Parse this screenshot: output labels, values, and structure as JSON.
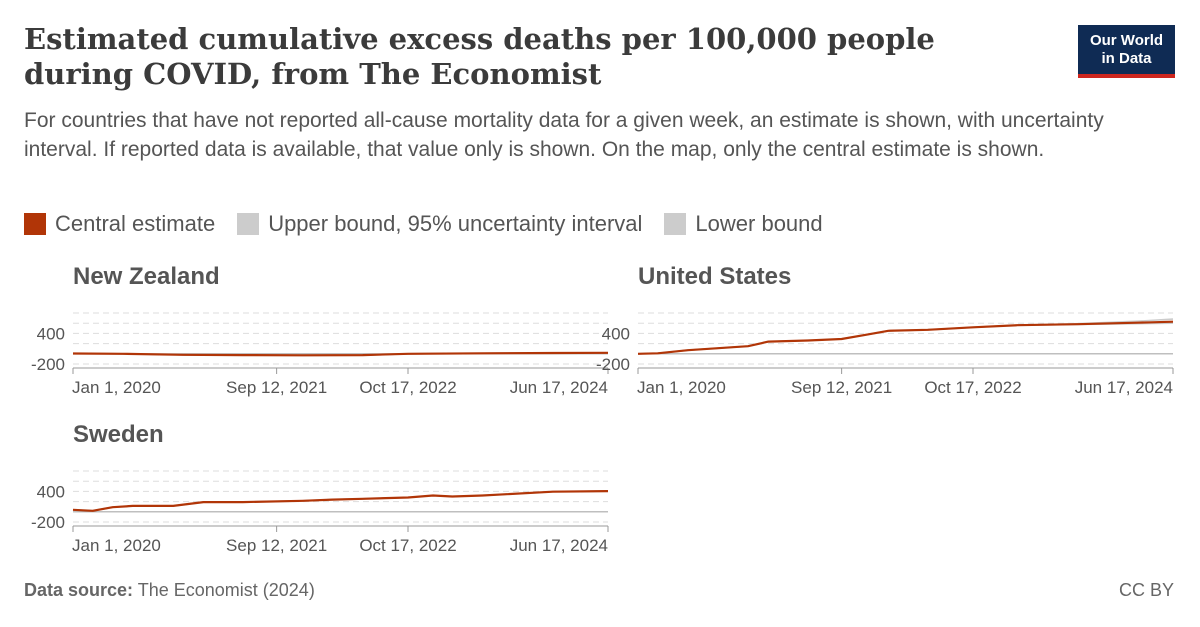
{
  "header": {
    "title": "Estimated cumulative excess deaths per 100,000 people during COVID, from The Economist",
    "subtitle": "For countries that have not reported all-cause mortality data for a given week, an estimate is shown, with uncertainty interval. If reported data is available, that value only is shown. On the map, only the central estimate is shown.",
    "logo_line1": "Our World",
    "logo_line2": "in Data"
  },
  "legend": [
    {
      "label": "Central estimate",
      "color": "#b13507"
    },
    {
      "label": "Upper bound, 95% uncertainty interval",
      "color": "#cccccc"
    },
    {
      "label": "Lower bound",
      "color": "#cccccc"
    }
  ],
  "footer": {
    "source_label": "Data source:",
    "source_text": "The Economist (2024)",
    "license": "CC BY"
  },
  "colors": {
    "central": "#b13507",
    "bound": "#cccccc",
    "grid": "#dddddd",
    "zero": "#aaaaaa"
  },
  "chart_data": [
    {
      "type": "line",
      "title": "New Zealand",
      "x_ticks": [
        "Jan 1, 2020",
        "Sep 12, 2021",
        "Oct 17, 2022",
        "Jun 17, 2024"
      ],
      "x_range": [
        "2020-01-01",
        "2024-06-17"
      ],
      "y_ticks": [
        "400",
        "-200"
      ],
      "ylim": [
        -200,
        800
      ],
      "series": [
        {
          "name": "Central estimate",
          "x": [
            "2020-01-01",
            "2020-06-01",
            "2020-12-01",
            "2021-06-01",
            "2021-12-01",
            "2022-06-01",
            "2022-10-17",
            "2023-06-01",
            "2024-01-01",
            "2024-06-17"
          ],
          "y": [
            5,
            0,
            -20,
            -25,
            -30,
            -25,
            0,
            10,
            15,
            20
          ]
        },
        {
          "name": "Upper bound, 95% uncertainty interval",
          "x": [
            "2020-01-01",
            "2020-06-01",
            "2020-12-01",
            "2021-06-01",
            "2021-12-01",
            "2022-06-01",
            "2022-10-17",
            "2023-06-01",
            "2024-01-01",
            "2024-06-17"
          ],
          "y": [
            5,
            0,
            -20,
            -25,
            -30,
            -25,
            0,
            10,
            15,
            20
          ]
        },
        {
          "name": "Lower bound",
          "x": [
            "2020-01-01",
            "2020-06-01",
            "2020-12-01",
            "2021-06-01",
            "2021-12-01",
            "2022-06-01",
            "2022-10-17",
            "2023-06-01",
            "2024-01-01",
            "2024-06-17"
          ],
          "y": [
            5,
            0,
            -20,
            -25,
            -30,
            -25,
            0,
            10,
            15,
            20
          ]
        }
      ]
    },
    {
      "type": "line",
      "title": "United States",
      "x_ticks": [
        "Jan 1, 2020",
        "Sep 12, 2021",
        "Oct 17, 2022",
        "Jun 17, 2024"
      ],
      "x_range": [
        "2020-01-01",
        "2024-06-17"
      ],
      "y_ticks": [
        "400",
        "-200"
      ],
      "ylim": [
        -200,
        800
      ],
      "series": [
        {
          "name": "Central estimate",
          "x": [
            "2020-01-01",
            "2020-03-01",
            "2020-06-01",
            "2020-09-01",
            "2020-12-01",
            "2021-02-01",
            "2021-06-01",
            "2021-09-12",
            "2021-12-01",
            "2022-02-01",
            "2022-06-01",
            "2022-10-17",
            "2023-03-01",
            "2023-09-01",
            "2024-03-01",
            "2024-06-17"
          ],
          "y": [
            0,
            10,
            70,
            110,
            150,
            240,
            260,
            290,
            380,
            450,
            470,
            520,
            560,
            580,
            610,
            630
          ]
        },
        {
          "name": "Upper bound, 95% uncertainty interval",
          "x": [
            "2020-01-01",
            "2020-03-01",
            "2020-06-01",
            "2020-09-01",
            "2020-12-01",
            "2021-02-01",
            "2021-06-01",
            "2021-09-12",
            "2021-12-01",
            "2022-02-01",
            "2022-06-01",
            "2022-10-17",
            "2023-03-01",
            "2023-09-01",
            "2024-03-01",
            "2024-06-17"
          ],
          "y": [
            0,
            10,
            70,
            110,
            150,
            240,
            260,
            290,
            380,
            450,
            470,
            520,
            560,
            590,
            640,
            680
          ]
        },
        {
          "name": "Lower bound",
          "x": [
            "2020-01-01",
            "2020-03-01",
            "2020-06-01",
            "2020-09-01",
            "2020-12-01",
            "2021-02-01",
            "2021-06-01",
            "2021-09-12",
            "2021-12-01",
            "2022-02-01",
            "2022-06-01",
            "2022-10-17",
            "2023-03-01",
            "2023-09-01",
            "2024-03-01",
            "2024-06-17"
          ],
          "y": [
            0,
            10,
            70,
            110,
            150,
            240,
            260,
            290,
            380,
            450,
            470,
            520,
            560,
            575,
            590,
            600
          ]
        }
      ]
    },
    {
      "type": "line",
      "title": "Sweden",
      "x_ticks": [
        "Jan 1, 2020",
        "Sep 12, 2021",
        "Oct 17, 2022",
        "Jun 17, 2024"
      ],
      "x_range": [
        "2020-01-01",
        "2024-06-17"
      ],
      "y_ticks": [
        "400",
        "-200"
      ],
      "ylim": [
        -200,
        800
      ],
      "series": [
        {
          "name": "Central estimate",
          "x": [
            "2020-01-01",
            "2020-03-01",
            "2020-05-01",
            "2020-07-01",
            "2020-11-01",
            "2021-02-01",
            "2021-06-01",
            "2021-12-01",
            "2022-03-01",
            "2022-06-01",
            "2022-10-17",
            "2023-01-01",
            "2023-03-01",
            "2023-06-01",
            "2024-01-01",
            "2024-06-17"
          ],
          "y": [
            40,
            20,
            90,
            115,
            115,
            190,
            190,
            215,
            240,
            255,
            280,
            320,
            300,
            320,
            395,
            405
          ]
        },
        {
          "name": "Upper bound, 95% uncertainty interval",
          "x": [
            "2020-01-01",
            "2020-03-01",
            "2020-05-01",
            "2020-07-01",
            "2020-11-01",
            "2021-02-01",
            "2021-06-01",
            "2021-12-01",
            "2022-03-01",
            "2022-06-01",
            "2022-10-17",
            "2023-01-01",
            "2023-03-01",
            "2023-06-01",
            "2024-01-01",
            "2024-06-17"
          ],
          "y": [
            40,
            20,
            90,
            115,
            115,
            190,
            190,
            215,
            240,
            255,
            280,
            320,
            300,
            320,
            395,
            405
          ]
        },
        {
          "name": "Lower bound",
          "x": [
            "2020-01-01",
            "2020-03-01",
            "2020-05-01",
            "2020-07-01",
            "2020-11-01",
            "2021-02-01",
            "2021-06-01",
            "2021-12-01",
            "2022-03-01",
            "2022-06-01",
            "2022-10-17",
            "2023-01-01",
            "2023-03-01",
            "2023-06-01",
            "2024-01-01",
            "2024-06-17"
          ],
          "y": [
            40,
            20,
            90,
            115,
            115,
            190,
            190,
            215,
            240,
            255,
            280,
            320,
            300,
            320,
            395,
            405
          ]
        }
      ]
    }
  ]
}
